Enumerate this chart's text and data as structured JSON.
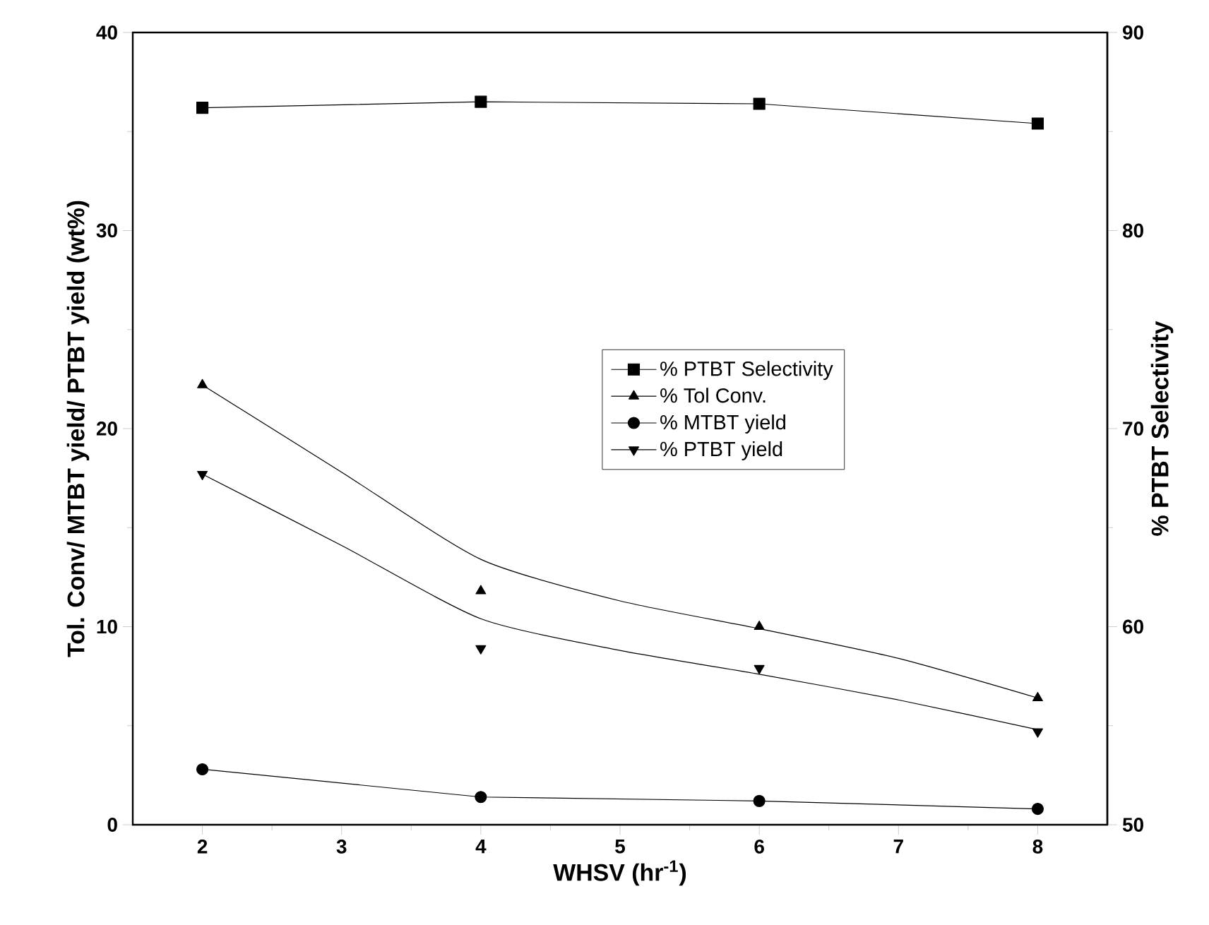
{
  "chart_data": {
    "type": "line",
    "xlabel": "WHSV (hr$^{-1}$)",
    "ylabel": "Tol. Conv/ MTBT yield/ PTBT yield (wt%)",
    "y2label": "% PTBT Selectivity",
    "xlim": [
      1.5,
      8.5
    ],
    "xticks": [
      2,
      3,
      4,
      5,
      6,
      7,
      8
    ],
    "ylim": [
      0,
      40
    ],
    "yticks": [
      0,
      10,
      20,
      30,
      40
    ],
    "y2lim": [
      50,
      90
    ],
    "y2ticks": [
      50,
      60,
      70,
      80,
      90
    ],
    "legend": "right",
    "line_style": "solid",
    "series": [
      {
        "name": "% PTBT Selectivity",
        "axis": "y2",
        "marker": "square",
        "color": "#000000",
        "x": [
          2,
          4,
          6,
          8
        ],
        "values": [
          86.2,
          86.5,
          86.4,
          85.4
        ]
      },
      {
        "name": "% Tol Conv.",
        "type": "scatter",
        "marker": "triangle",
        "color": "#000000",
        "x": [
          2,
          4,
          6,
          8
        ],
        "values": [
          22.2,
          11.8,
          10.0,
          6.4
        ]
      },
      {
        "name": "% MTBT yield",
        "marker": "circle",
        "color": "#000000",
        "x": [
          2,
          4,
          6,
          8
        ],
        "values": [
          2.8,
          1.4,
          1.2,
          0.8
        ]
      },
      {
        "name": "% PTBT yield",
        "type": "scatter",
        "marker": "triangle-down",
        "color": "#000000",
        "x": [
          2,
          4,
          6,
          8
        ],
        "values": [
          17.7,
          8.9,
          7.9,
          4.7
        ]
      },
      {
        "marker": "none",
        "color": "#000000",
        "x": [
          2,
          3,
          4,
          5,
          6,
          7,
          8
        ],
        "values": [
          22.2,
          17.8,
          13.4,
          11.3,
          9.9,
          8.4,
          6.4
        ]
      },
      {
        "marker": "none",
        "color": "#000000",
        "x": [
          2,
          3,
          4,
          5,
          6,
          7,
          8
        ],
        "values": [
          17.7,
          14.1,
          10.4,
          8.8,
          7.6,
          6.3,
          4.8
        ]
      }
    ]
  }
}
